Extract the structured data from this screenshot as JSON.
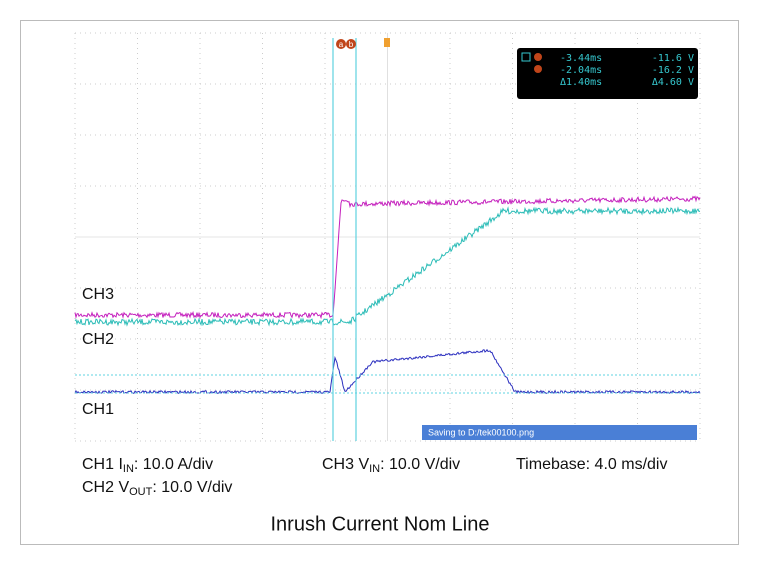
{
  "channel_labels": [
    "CH3",
    "CH2",
    "CH1"
  ],
  "cursor_markers": [
    "a",
    "b"
  ],
  "cursor_readout": [
    [
      "-3.44ms",
      "-11.6 V"
    ],
    [
      "-2.04ms",
      "-16.2 V"
    ],
    [
      "Δ1.40ms",
      "Δ4.60 V"
    ]
  ],
  "status": "Saving to D:/tek00100.png",
  "captions": [
    {
      "prefix": "CH1 I",
      "sub": "IN",
      "suffix": ": 10.0 A/div"
    },
    {
      "prefix": "CH2 V",
      "sub": "OUT",
      "suffix": ": 10.0 V/div"
    },
    {
      "prefix": "CH3 V",
      "sub": "IN",
      "suffix": ": 10.0 V/div"
    }
  ],
  "timebase": "Timebase: 4.0 ms/div",
  "title": "Inrush Current Nom Line"
}
